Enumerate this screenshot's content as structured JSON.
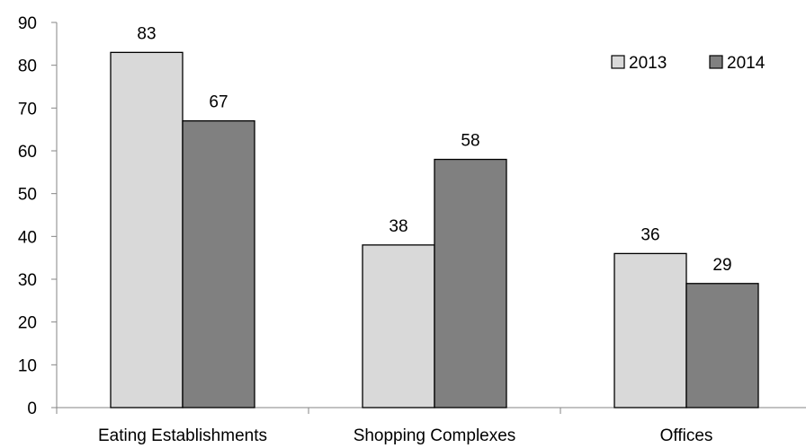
{
  "chart_data": {
    "type": "bar",
    "title": "",
    "xlabel": "",
    "ylabel": "",
    "categories": [
      "Eating Establishments",
      "Shopping Complexes",
      "Offices"
    ],
    "series": [
      {
        "name": "2013",
        "values": [
          83,
          38,
          36
        ],
        "color": "#d9d9d9"
      },
      {
        "name": "2014",
        "values": [
          67,
          58,
          29
        ],
        "color": "#808080"
      }
    ],
    "ylim": [
      0,
      90
    ],
    "yticks": [
      "0",
      "10",
      "20",
      "30",
      "40",
      "50",
      "60",
      "70",
      "80",
      "90"
    ],
    "grid": false,
    "legend_position": "top-right",
    "data_labels": true
  }
}
